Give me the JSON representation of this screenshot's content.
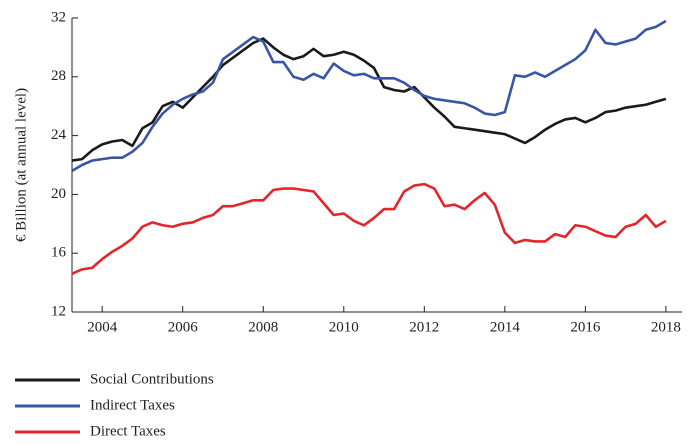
{
  "chart_data": {
    "type": "line",
    "y_label": "€ Billion  (at annual level)",
    "x": [
      2003.25,
      2003.5,
      2003.75,
      2004,
      2004.25,
      2004.5,
      2004.75,
      2005,
      2005.25,
      2005.5,
      2005.75,
      2006,
      2006.25,
      2006.5,
      2006.75,
      2007,
      2007.25,
      2007.5,
      2007.75,
      2008,
      2008.25,
      2008.5,
      2008.75,
      2009,
      2009.25,
      2009.5,
      2009.75,
      2010,
      2010.25,
      2010.5,
      2010.75,
      2011,
      2011.25,
      2011.5,
      2011.75,
      2012,
      2012.25,
      2012.5,
      2012.75,
      2013,
      2013.25,
      2013.5,
      2013.75,
      2014,
      2014.25,
      2014.5,
      2014.75,
      2015,
      2015.25,
      2015.5,
      2015.75,
      2016,
      2016.25,
      2016.5,
      2016.75,
      2017,
      2017.25,
      2017.5,
      2017.75,
      2018
    ],
    "series": [
      {
        "name": "Social Contributions",
        "color": "#1a1a1a",
        "values": [
          22.3,
          22.4,
          23.0,
          23.4,
          23.6,
          23.7,
          23.3,
          24.5,
          24.9,
          26.0,
          26.3,
          25.9,
          26.6,
          27.3,
          28.0,
          28.8,
          29.3,
          29.8,
          30.3,
          30.6,
          30.0,
          29.5,
          29.2,
          29.4,
          29.9,
          29.4,
          29.5,
          29.7,
          29.5,
          29.1,
          28.6,
          27.3,
          27.1,
          27.0,
          27.3,
          26.6,
          25.9,
          25.3,
          24.6,
          24.5,
          24.4,
          24.3,
          24.2,
          24.1,
          23.8,
          23.5,
          23.9,
          24.4,
          24.8,
          25.1,
          25.2,
          24.9,
          25.2,
          25.6,
          25.7,
          25.9,
          26.0,
          26.1,
          26.3,
          26.5
        ]
      },
      {
        "name": "Indirect Taxes",
        "color": "#3b55a5",
        "values": [
          21.6,
          22.0,
          22.3,
          22.4,
          22.5,
          22.5,
          22.9,
          23.5,
          24.6,
          25.5,
          26.1,
          26.5,
          26.8,
          27.0,
          27.6,
          29.2,
          29.7,
          30.2,
          30.7,
          30.4,
          29.0,
          29.0,
          28.0,
          27.8,
          28.2,
          27.9,
          28.9,
          28.4,
          28.1,
          28.2,
          27.9,
          27.9,
          27.9,
          27.6,
          27.1,
          26.7,
          26.5,
          26.4,
          26.3,
          26.2,
          25.9,
          25.5,
          25.4,
          25.6,
          28.1,
          28.0,
          28.3,
          28.0,
          28.4,
          28.8,
          29.2,
          29.8,
          31.2,
          30.3,
          30.2,
          30.4,
          30.6,
          31.2,
          31.4,
          31.8
        ]
      },
      {
        "name": "Direct Taxes",
        "color": "#e2262b",
        "values": [
          14.6,
          14.9,
          15.0,
          15.6,
          16.1,
          16.5,
          17.0,
          17.8,
          18.1,
          17.9,
          17.8,
          18.0,
          18.1,
          18.4,
          18.6,
          19.2,
          19.2,
          19.4,
          19.6,
          19.6,
          20.3,
          20.4,
          20.4,
          20.3,
          20.2,
          19.4,
          18.6,
          18.7,
          18.2,
          17.9,
          18.4,
          19.0,
          19.0,
          20.2,
          20.6,
          20.7,
          20.4,
          19.2,
          19.3,
          19.0,
          19.6,
          20.1,
          19.3,
          17.4,
          16.7,
          16.9,
          16.8,
          16.8,
          17.3,
          17.1,
          17.9,
          17.8,
          17.5,
          17.2,
          17.1,
          17.8,
          18.0,
          18.6,
          17.8,
          18.2
        ]
      }
    ],
    "xlim": [
      2003.25,
      2018.4
    ],
    "xticks": [
      2004,
      2006,
      2008,
      2010,
      2012,
      2014,
      2016,
      2018
    ],
    "ylim": [
      12,
      32
    ],
    "yticks": [
      12,
      16,
      20,
      24,
      28,
      32
    ]
  }
}
